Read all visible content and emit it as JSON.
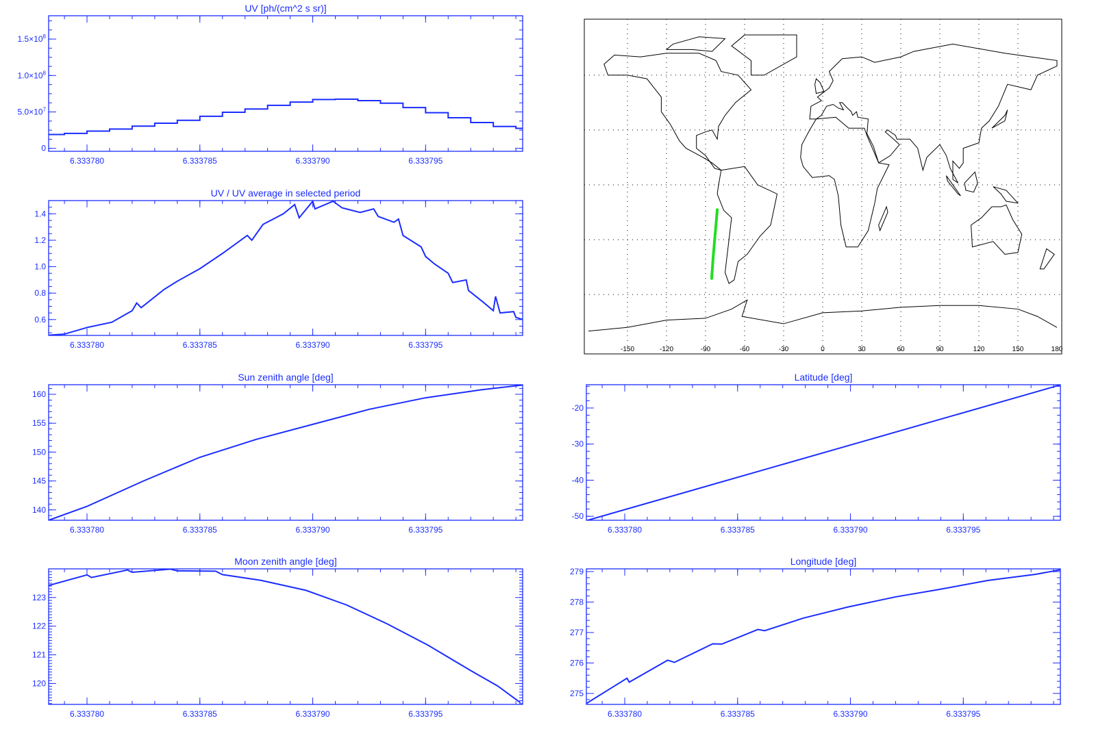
{
  "x_axis": {
    "xlim": [
      6.3337783,
      6.3337993
    ],
    "ticks": [
      6.33378,
      6.333785,
      6.33379,
      6.333795
    ],
    "labels": [
      "6.333780",
      "6.333785",
      "6.333790",
      "6.333795"
    ],
    "minor_step": 1e-06
  },
  "colors": {
    "axis": "#1a2cff",
    "line": "#1a2cff",
    "track": "#22dd22",
    "map": "#000000"
  },
  "chart_data": [
    {
      "type": "line",
      "step": true,
      "title": "UV [ph/(cm^2 s sr)]",
      "ylim": [
        -4000000,
        182000000
      ],
      "yticks": [
        {
          "value": 0,
          "label": "0",
          "exp": ""
        },
        {
          "value": 50000000,
          "label": "5.0×10",
          "exp": "7"
        },
        {
          "value": 100000000,
          "label": "1.0×10",
          "exp": "8"
        },
        {
          "value": 150000000,
          "label": "1.5×10",
          "exp": "8"
        }
      ],
      "yminor": 12500000,
      "points": [
        [
          6.333778,
          19000000
        ],
        [
          6.333779,
          20500000
        ],
        [
          6.33378,
          23700000
        ],
        [
          6.333781,
          26500000
        ],
        [
          6.333782,
          30500000
        ],
        [
          6.333783,
          34500000
        ],
        [
          6.333784,
          38500000
        ],
        [
          6.333785,
          44000000
        ],
        [
          6.333786,
          49500000
        ],
        [
          6.333787,
          54000000
        ],
        [
          6.333788,
          59000000
        ],
        [
          6.333789,
          63500000
        ],
        [
          6.33379,
          67000000
        ],
        [
          6.333791,
          67500000
        ],
        [
          6.333792,
          65500000
        ],
        [
          6.333793,
          62000000
        ],
        [
          6.333794,
          56000000
        ],
        [
          6.333795,
          49000000
        ],
        [
          6.333796,
          42000000
        ],
        [
          6.333797,
          35500000
        ],
        [
          6.333798,
          30000000
        ],
        [
          6.333799,
          27500000
        ],
        [
          6.3338,
          27500000
        ]
      ]
    },
    {
      "type": "line",
      "step": false,
      "title": "UV / UV average in selected period",
      "ylim": [
        0.48,
        1.5
      ],
      "yticks": [
        {
          "value": 0.6,
          "label": "0.6"
        },
        {
          "value": 0.8,
          "label": "0.8"
        },
        {
          "value": 1.0,
          "label": "1.0"
        },
        {
          "value": 1.2,
          "label": "1.2"
        },
        {
          "value": 1.4,
          "label": "1.4"
        }
      ],
      "yminor": 0.05,
      "points": [
        [
          6.3337783,
          0.48
        ],
        [
          6.3337784,
          0.483
        ],
        [
          6.333779,
          0.49
        ],
        [
          6.33378,
          0.54
        ],
        [
          6.3337811,
          0.58
        ],
        [
          6.333782,
          0.667
        ],
        [
          6.3337822,
          0.725
        ],
        [
          6.3337824,
          0.69
        ],
        [
          6.3337834,
          0.826
        ],
        [
          6.333784,
          0.89
        ],
        [
          6.333785,
          0.985
        ],
        [
          6.333786,
          1.1
        ],
        [
          6.3337871,
          1.236
        ],
        [
          6.3337873,
          1.2
        ],
        [
          6.3337878,
          1.32
        ],
        [
          6.3337887,
          1.4
        ],
        [
          6.3337892,
          1.47
        ],
        [
          6.3337894,
          1.37
        ],
        [
          6.33379,
          1.495
        ],
        [
          6.3337901,
          1.437
        ],
        [
          6.3337909,
          1.495
        ],
        [
          6.3337913,
          1.445
        ],
        [
          6.3337921,
          1.41
        ],
        [
          6.3337927,
          1.437
        ],
        [
          6.3337929,
          1.38
        ],
        [
          6.3337936,
          1.336
        ],
        [
          6.3337938,
          1.36
        ],
        [
          6.333794,
          1.236
        ],
        [
          6.3337948,
          1.15
        ],
        [
          6.333795,
          1.077
        ],
        [
          6.3337954,
          1.02
        ],
        [
          6.333796,
          0.95
        ],
        [
          6.3337962,
          0.88
        ],
        [
          6.3337968,
          0.9
        ],
        [
          6.3337969,
          0.82
        ],
        [
          6.3337976,
          0.725
        ],
        [
          6.333798,
          0.667
        ],
        [
          6.3337981,
          0.775
        ],
        [
          6.3337983,
          0.65
        ],
        [
          6.3337989,
          0.66
        ],
        [
          6.333799,
          0.617
        ],
        [
          6.3337993,
          0.6
        ]
      ]
    },
    {
      "type": "line",
      "step": false,
      "title": "Sun zenith angle [deg]",
      "ylim": [
        138.2,
        161.66
      ],
      "yticks": [
        {
          "value": 140,
          "label": "140"
        },
        {
          "value": 145,
          "label": "145"
        },
        {
          "value": 150,
          "label": "150"
        },
        {
          "value": 155,
          "label": "155"
        },
        {
          "value": 160,
          "label": "160"
        }
      ],
      "yminor": 1,
      "points": [
        [
          6.3337783,
          138.2
        ],
        [
          6.33378,
          140.6
        ],
        [
          6.3337825,
          145.0
        ],
        [
          6.333785,
          149.1
        ],
        [
          6.3337875,
          152.2
        ],
        [
          6.33379,
          154.8
        ],
        [
          6.3337925,
          157.4
        ],
        [
          6.333795,
          159.4
        ],
        [
          6.3337975,
          160.8
        ],
        [
          6.3337993,
          161.6
        ]
      ]
    },
    {
      "type": "line",
      "step": false,
      "title": "Moon zenith angle [deg]",
      "ylim": [
        119.27,
        124.0
      ],
      "yticks": [
        {
          "value": 120,
          "label": "120"
        },
        {
          "value": 121,
          "label": "121"
        },
        {
          "value": 122,
          "label": "122"
        },
        {
          "value": 123,
          "label": "123"
        }
      ],
      "yminor": 0.1,
      "points": [
        [
          6.3337783,
          123.42
        ],
        [
          6.33378,
          123.79
        ],
        [
          6.3337802,
          123.7
        ],
        [
          6.3337818,
          123.96
        ],
        [
          6.333782,
          123.88
        ],
        [
          6.3337837,
          123.99
        ],
        [
          6.333784,
          123.93
        ],
        [
          6.3337857,
          123.92
        ],
        [
          6.333786,
          123.8
        ],
        [
          6.3337877,
          123.6
        ],
        [
          6.3337897,
          123.25
        ],
        [
          6.3337915,
          122.74
        ],
        [
          6.3337933,
          122.08
        ],
        [
          6.3337951,
          121.34
        ],
        [
          6.333797,
          120.45
        ],
        [
          6.3337982,
          119.91
        ],
        [
          6.3337992,
          119.33
        ]
      ]
    },
    {
      "type": "line",
      "step": false,
      "title": "Latitude [deg]",
      "ylim": [
        -51.1,
        -13.55
      ],
      "yticks": [
        {
          "value": -50,
          "label": "-50"
        },
        {
          "value": -40,
          "label": "-40"
        },
        {
          "value": -30,
          "label": "-30"
        },
        {
          "value": -20,
          "label": "-20"
        }
      ],
      "yminor": 2,
      "points": [
        [
          6.3337783,
          -51.2
        ],
        [
          6.3337993,
          -13.6
        ]
      ]
    },
    {
      "type": "line",
      "step": false,
      "title": "Longitude [deg]",
      "ylim": [
        274.64,
        279.09
      ],
      "yticks": [
        {
          "value": 275,
          "label": "275"
        },
        {
          "value": 276,
          "label": "276"
        },
        {
          "value": 277,
          "label": "277"
        },
        {
          "value": 278,
          "label": "278"
        },
        {
          "value": 279,
          "label": "279"
        }
      ],
      "yminor": 0.2,
      "points": [
        [
          6.3337783,
          274.67
        ],
        [
          6.3337801,
          275.5
        ],
        [
          6.3337802,
          275.37
        ],
        [
          6.3337819,
          276.09
        ],
        [
          6.3337822,
          276.02
        ],
        [
          6.3337839,
          276.63
        ],
        [
          6.3337843,
          276.62
        ],
        [
          6.3337859,
          277.1
        ],
        [
          6.3337862,
          277.06
        ],
        [
          6.3337879,
          277.47
        ],
        [
          6.3337899,
          277.84
        ],
        [
          6.333792,
          278.17
        ],
        [
          6.3337939,
          278.41
        ],
        [
          6.3337961,
          278.71
        ],
        [
          6.3337982,
          278.91
        ],
        [
          6.3337993,
          279.06
        ]
      ]
    }
  ],
  "map": {
    "type": "map",
    "xlim": [
      -180,
      180
    ],
    "ylim": [
      -92.5,
      90.6
    ],
    "lon_ticks": [
      -150,
      -120,
      -90,
      -60,
      -30,
      0,
      30,
      60,
      90,
      120,
      150,
      180
    ],
    "lon_labels": [
      "-150",
      "-120",
      "-90",
      "-60",
      "-30",
      "0",
      "30",
      "60",
      "90",
      "120",
      "150",
      "180"
    ],
    "lat_grid": [
      -60,
      -30,
      0,
      30,
      60
    ],
    "track": [
      [
        -85.3,
        -51.2
      ],
      [
        -84.2,
        -40
      ],
      [
        -83,
        -30
      ],
      [
        -82,
        -22
      ],
      [
        -81,
        -13.6
      ]
    ]
  }
}
